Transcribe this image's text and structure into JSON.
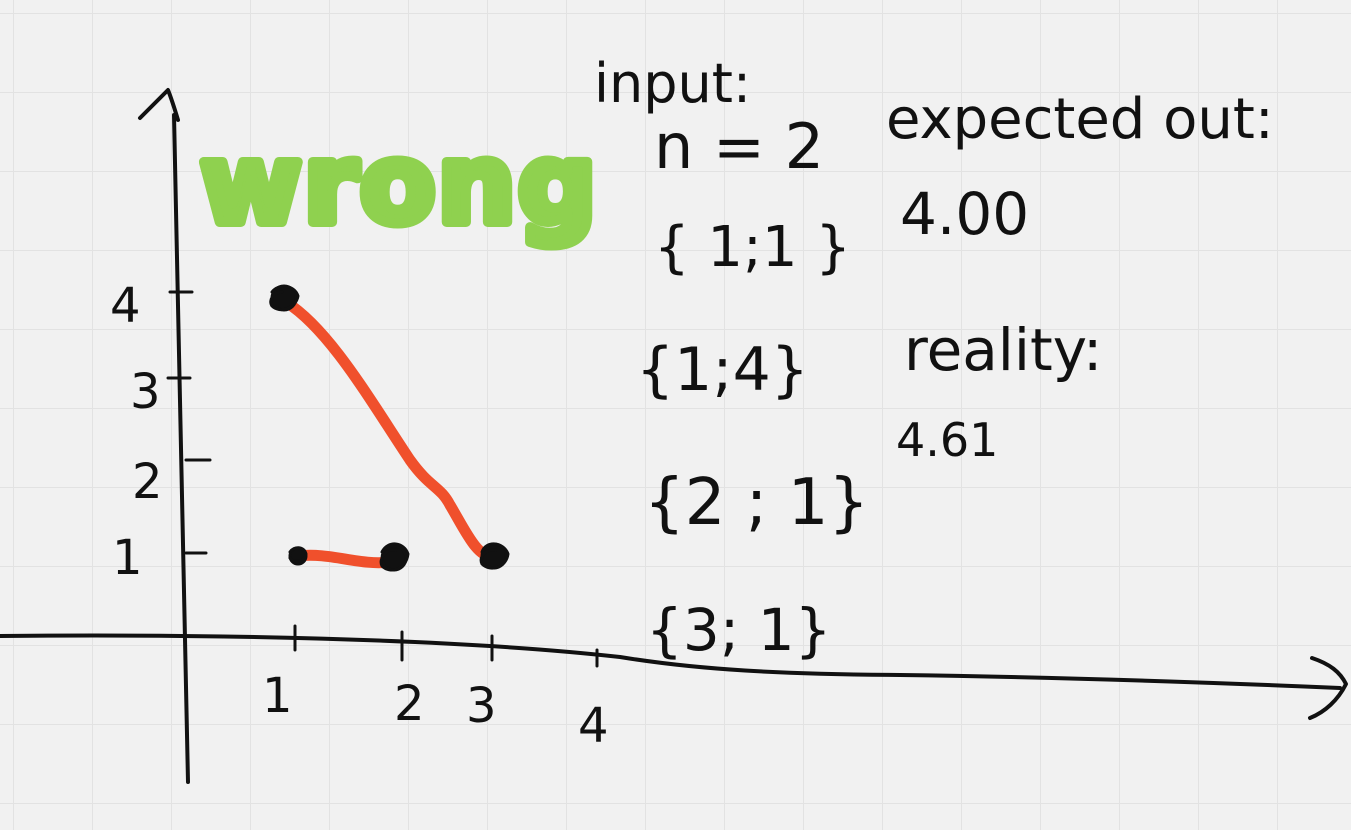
{
  "colors": {
    "ink": "#111111",
    "segment": "#f0502c",
    "wrong": "#8fd14f",
    "grid": "#e2e2e2",
    "background": "#f1f1f1"
  },
  "stamp": {
    "text": "wrong"
  },
  "axes": {
    "x_ticks": [
      "1",
      "2",
      "3",
      "4"
    ],
    "y_ticks": [
      "1",
      "2",
      "3",
      "4"
    ]
  },
  "input": {
    "heading": "input:",
    "n_line": "n = 2",
    "points": [
      "{ 1;1 }",
      "{1;4}",
      "{2 ; 1}",
      "{3; 1}"
    ]
  },
  "expected": {
    "label": "expected out:",
    "value": "4.00"
  },
  "reality": {
    "label": "reality:",
    "value": "4.61"
  }
}
